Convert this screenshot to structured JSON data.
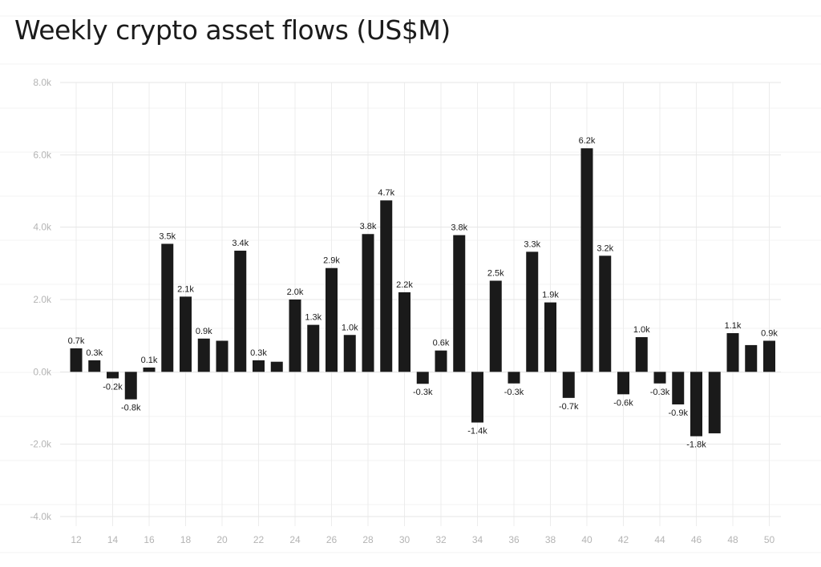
{
  "chart_data": {
    "type": "bar",
    "title": "Weekly crypto asset flows (US$M)",
    "xlabel": "",
    "ylabel": "",
    "ylim": [
      -4000,
      8000
    ],
    "yticks": [
      -4000,
      -2000,
      0,
      2000,
      4000,
      6000,
      8000
    ],
    "ytick_labels": [
      "-4.0k",
      "-2.0k",
      "0.0k",
      "2.0k",
      "4.0k",
      "6.0k",
      "8.0k"
    ],
    "xtick_labels": [
      "12",
      "14",
      "16",
      "18",
      "20",
      "22",
      "24",
      "26",
      "28",
      "30",
      "32",
      "34",
      "36",
      "38",
      "40",
      "42",
      "44",
      "46",
      "48",
      "50"
    ],
    "bar_color": "#1a1a1a",
    "grid": true,
    "categories": [
      12,
      13,
      14,
      15,
      16,
      17,
      18,
      19,
      20,
      21,
      22,
      23,
      24,
      25,
      26,
      27,
      28,
      29,
      30,
      31,
      32,
      33,
      34,
      35,
      36,
      37,
      38,
      39,
      40,
      41,
      42,
      43,
      44,
      45,
      46,
      47,
      48,
      49,
      50
    ],
    "values": [
      650,
      320,
      -180,
      -760,
      120,
      3540,
      2080,
      920,
      860,
      3350,
      320,
      280,
      2000,
      1300,
      2870,
      1020,
      3810,
      4740,
      2200,
      -330,
      590,
      3780,
      -1400,
      2520,
      -320,
      3320,
      1920,
      -720,
      6180,
      3210,
      -620,
      960,
      -320,
      -900,
      -1780,
      -1700,
      1070,
      740,
      860
    ],
    "data_labels": [
      "0.7k",
      "0.3k",
      "-0.2k",
      "-0.8k",
      "0.1k",
      "3.5k",
      "2.1k",
      "0.9k",
      "",
      "3.4k",
      "0.3k",
      "",
      "2.0k",
      "1.3k",
      "2.9k",
      "1.0k",
      "3.8k",
      "4.7k",
      "2.2k",
      "-0.3k",
      "0.6k",
      "3.8k",
      "-1.4k",
      "2.5k",
      "-0.3k",
      "3.3k",
      "1.9k",
      "-0.7k",
      "6.2k",
      "3.2k",
      "-0.6k",
      "1.0k",
      "-0.3k",
      "-0.9k",
      "-1.8k",
      "",
      "1.1k",
      "",
      "0.9k"
    ]
  }
}
